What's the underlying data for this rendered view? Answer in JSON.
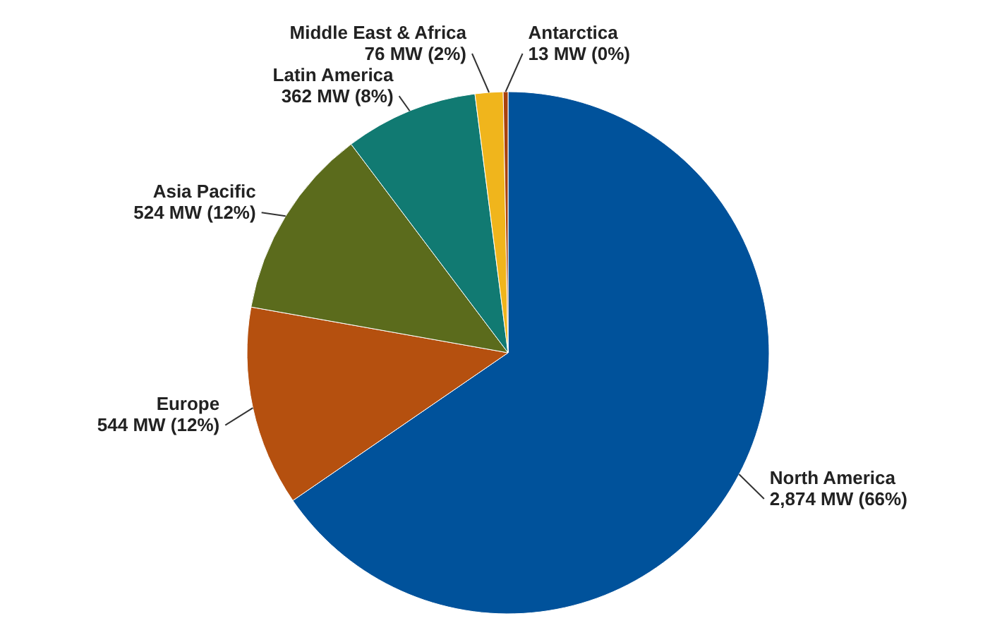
{
  "chart_data": {
    "type": "pie",
    "categories": [
      "North America",
      "Europe",
      "Asia Pacific",
      "Latin America",
      "Middle East & Africa",
      "Antarctica"
    ],
    "values": [
      2874,
      544,
      524,
      362,
      76,
      13
    ],
    "value_labels": [
      "2,874 MW (66%)",
      "544 MW (12%)",
      "524 MW (12%)",
      "362 MW (8%)",
      "76 MW (2%)",
      "13 MW (0%)"
    ],
    "colors": [
      "#00529b",
      "#b5500f",
      "#5b6b1c",
      "#117a72",
      "#f0b51c",
      "#a8410c"
    ]
  }
}
